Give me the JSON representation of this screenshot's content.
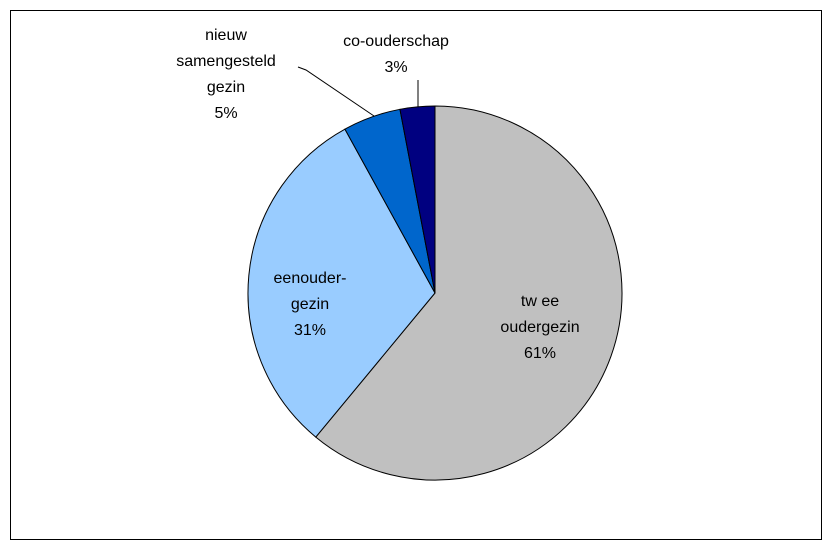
{
  "chart_data": {
    "type": "pie",
    "categories": [
      "tw ee\noudergezin",
      "eenouder-\ngezin",
      "nieuw\nsamengesteld\ngezin",
      "co-ouderschap"
    ],
    "values": [
      61,
      31,
      5,
      3
    ],
    "value_labels": [
      "61%",
      "31%",
      "5%",
      "3%"
    ],
    "colors": [
      "#c0c0c0",
      "#99ccff",
      "#0066cc",
      "#000080"
    ]
  }
}
